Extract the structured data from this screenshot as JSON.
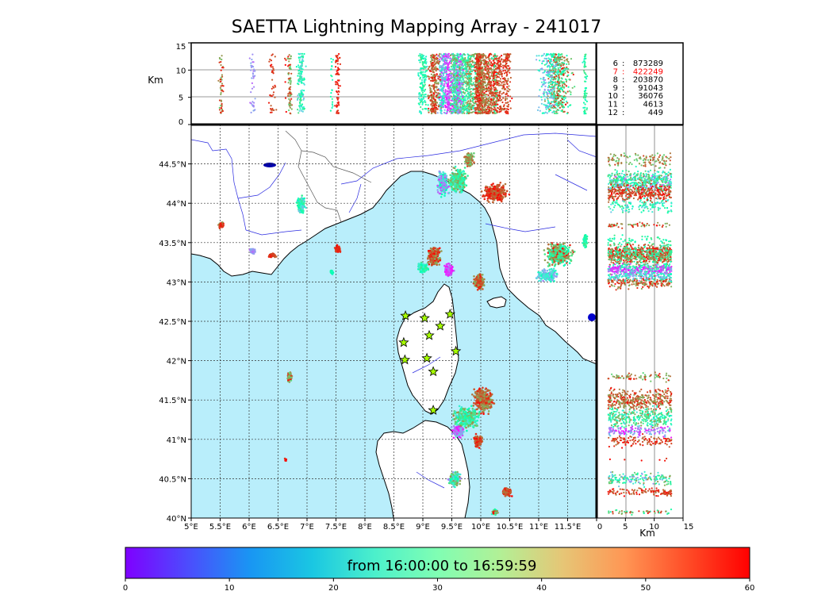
{
  "title": "SAETTA Lightning Mapping Array - 241017",
  "altitude_axis": {
    "unit": "Km",
    "ticks": [
      "0",
      "5",
      "10",
      "15"
    ]
  },
  "map": {
    "lon_ticks": [
      "5°E",
      "5.5°E",
      "6°E",
      "6.5°E",
      "7°E",
      "7.5°E",
      "8°E",
      "8.5°E",
      "9°E",
      "9.5°E",
      "10°E",
      "10.5°E",
      "11°E",
      "11.5°E"
    ],
    "lat_ticks": [
      "40°N",
      "40.5°N",
      "41°N",
      "41.5°N",
      "42°N",
      "42.5°N",
      "43°N",
      "43.5°N",
      "44°N",
      "44.5°N"
    ],
    "lon_range": [
      5,
      12
    ],
    "lat_range": [
      40,
      45
    ],
    "sea_color": "#b9eefb",
    "land_color": "#ffffff",
    "grid": "dotted",
    "station_icon": "star-icon",
    "stations": [
      {
        "lon": 8.7,
        "lat": 42.57
      },
      {
        "lon": 9.03,
        "lat": 42.54
      },
      {
        "lon": 9.47,
        "lat": 42.59
      },
      {
        "lon": 9.3,
        "lat": 42.44
      },
      {
        "lon": 9.11,
        "lat": 42.32
      },
      {
        "lon": 8.67,
        "lat": 42.23
      },
      {
        "lon": 9.57,
        "lat": 42.12
      },
      {
        "lon": 8.69,
        "lat": 42.01
      },
      {
        "lon": 9.07,
        "lat": 42.03
      },
      {
        "lon": 9.18,
        "lat": 41.86
      },
      {
        "lon": 9.18,
        "lat": 41.37
      }
    ]
  },
  "lightning_clusters": [
    {
      "lon": 5.52,
      "lat": 43.72,
      "w": 0.08,
      "h": 0.05,
      "n": 50,
      "cmin": 40,
      "cmax": 60
    },
    {
      "lon": 6.06,
      "lat": 43.39,
      "w": 0.08,
      "h": 0.05,
      "n": 40,
      "cmin": 8,
      "cmax": 15
    },
    {
      "lon": 6.4,
      "lat": 43.34,
      "w": 0.09,
      "h": 0.04,
      "n": 40,
      "cmin": 52,
      "cmax": 60
    },
    {
      "lon": 6.9,
      "lat": 43.98,
      "w": 0.1,
      "h": 0.15,
      "n": 140,
      "cmin": 15,
      "cmax": 40
    },
    {
      "lon": 7.53,
      "lat": 43.42,
      "w": 0.06,
      "h": 0.06,
      "n": 70,
      "cmin": 55,
      "cmax": 60
    },
    {
      "lon": 7.42,
      "lat": 43.13,
      "w": 0.04,
      "h": 0.04,
      "n": 20,
      "cmin": 25,
      "cmax": 35
    },
    {
      "lon": 6.7,
      "lat": 41.8,
      "w": 0.05,
      "h": 0.09,
      "n": 70,
      "cmin": 40,
      "cmax": 60
    },
    {
      "lon": 6.63,
      "lat": 40.74,
      "w": 0.02,
      "h": 0.02,
      "n": 6,
      "cmin": 55,
      "cmax": 60
    },
    {
      "lon": 9.35,
      "lat": 44.25,
      "w": 0.12,
      "h": 0.2,
      "n": 260,
      "cmin": 3,
      "cmax": 30
    },
    {
      "lon": 9.6,
      "lat": 44.3,
      "w": 0.2,
      "h": 0.2,
      "n": 300,
      "cmin": 20,
      "cmax": 50
    },
    {
      "lon": 9.8,
      "lat": 44.55,
      "w": 0.1,
      "h": 0.12,
      "n": 120,
      "cmin": 40,
      "cmax": 55
    },
    {
      "lon": 10.25,
      "lat": 44.13,
      "w": 0.25,
      "h": 0.15,
      "n": 320,
      "cmin": 50,
      "cmax": 60
    },
    {
      "lon": 9.2,
      "lat": 43.33,
      "w": 0.14,
      "h": 0.15,
      "n": 260,
      "cmin": 45,
      "cmax": 60
    },
    {
      "lon": 9.0,
      "lat": 43.18,
      "w": 0.12,
      "h": 0.08,
      "n": 160,
      "cmin": 20,
      "cmax": 40
    },
    {
      "lon": 9.45,
      "lat": 43.15,
      "w": 0.1,
      "h": 0.1,
      "n": 180,
      "cmin": 0,
      "cmax": 10
    },
    {
      "lon": 9.97,
      "lat": 43.0,
      "w": 0.12,
      "h": 0.12,
      "n": 220,
      "cmin": 45,
      "cmax": 60
    },
    {
      "lon": 11.35,
      "lat": 43.35,
      "w": 0.3,
      "h": 0.18,
      "n": 420,
      "cmin": 25,
      "cmax": 60
    },
    {
      "lon": 11.15,
      "lat": 43.08,
      "w": 0.22,
      "h": 0.1,
      "n": 180,
      "cmin": 10,
      "cmax": 30
    },
    {
      "lon": 11.8,
      "lat": 43.52,
      "w": 0.06,
      "h": 0.1,
      "n": 60,
      "cmin": 25,
      "cmax": 40
    },
    {
      "lon": 10.05,
      "lat": 41.5,
      "w": 0.22,
      "h": 0.2,
      "n": 380,
      "cmin": 45,
      "cmax": 60
    },
    {
      "lon": 9.75,
      "lat": 41.27,
      "w": 0.28,
      "h": 0.18,
      "n": 320,
      "cmin": 20,
      "cmax": 50
    },
    {
      "lon": 9.6,
      "lat": 41.1,
      "w": 0.12,
      "h": 0.1,
      "n": 160,
      "cmin": 0,
      "cmax": 20
    },
    {
      "lon": 9.95,
      "lat": 40.98,
      "w": 0.1,
      "h": 0.1,
      "n": 120,
      "cmin": 50,
      "cmax": 60
    },
    {
      "lon": 9.55,
      "lat": 40.5,
      "w": 0.12,
      "h": 0.12,
      "n": 170,
      "cmin": 10,
      "cmax": 50
    },
    {
      "lon": 10.45,
      "lat": 40.33,
      "w": 0.1,
      "h": 0.07,
      "n": 110,
      "cmin": 50,
      "cmax": 60
    },
    {
      "lon": 10.25,
      "lat": 40.08,
      "w": 0.08,
      "h": 0.05,
      "n": 50,
      "cmin": 25,
      "cmax": 60
    }
  ],
  "legend": {
    "rows": [
      {
        "key": "6",
        "value": "873289",
        "color": "#000000"
      },
      {
        "key": "7",
        "value": "422249",
        "color": "#ff0000"
      },
      {
        "key": "8",
        "value": "203870",
        "color": "#000000"
      },
      {
        "key": "9",
        "value": "91043",
        "color": "#000000"
      },
      {
        "key": "10",
        "value": "36076",
        "color": "#000000"
      },
      {
        "key": "11",
        "value": "4613",
        "color": "#000000"
      },
      {
        "key": "12",
        "value": "449",
        "color": "#000000"
      }
    ]
  },
  "colorbar": {
    "label": "from 16:00:00 to 16:59:59",
    "ticks": [
      "0",
      "10",
      "20",
      "30",
      "40",
      "50",
      "60"
    ],
    "range": [
      0,
      60
    ],
    "colormap": "rainbow"
  }
}
